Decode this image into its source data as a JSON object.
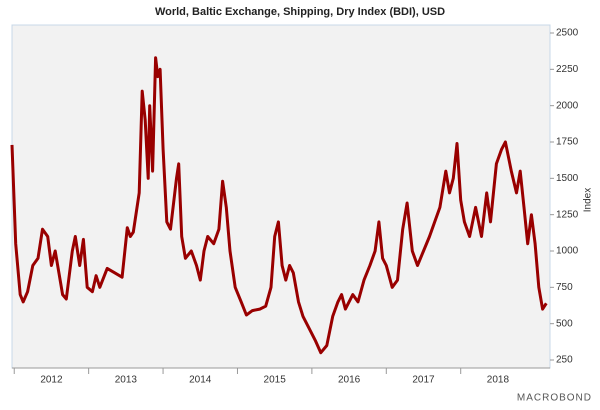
{
  "chart_data": {
    "type": "line",
    "title": "World, Baltic Exchange, Shipping, Dry Index (BDI), USD",
    "y_axis_label": "Index",
    "watermark": "MACROBOND",
    "x": [
      2011.97,
      2012.02,
      2012.08,
      2012.12,
      2012.18,
      2012.25,
      2012.32,
      2012.38,
      2012.45,
      2012.5,
      2012.55,
      2012.6,
      2012.65,
      2012.7,
      2012.78,
      2012.82,
      2012.88,
      2012.93,
      2012.98,
      2013.05,
      2013.1,
      2013.15,
      2013.25,
      2013.35,
      2013.45,
      2013.52,
      2013.56,
      2013.6,
      2013.68,
      2013.72,
      2013.76,
      2013.8,
      2013.82,
      2013.86,
      2013.9,
      2013.93,
      2013.96,
      2014.0,
      2014.05,
      2014.1,
      2014.18,
      2014.21,
      2014.25,
      2014.3,
      2014.38,
      2014.45,
      2014.5,
      2014.55,
      2014.6,
      2014.68,
      2014.75,
      2014.8,
      2014.85,
      2014.9,
      2014.97,
      2015.05,
      2015.12,
      2015.2,
      2015.3,
      2015.38,
      2015.45,
      2015.5,
      2015.55,
      2015.6,
      2015.65,
      2015.7,
      2015.75,
      2015.82,
      2015.88,
      2015.95,
      2016.05,
      2016.12,
      2016.2,
      2016.28,
      2016.35,
      2016.4,
      2016.45,
      2016.55,
      2016.62,
      2016.7,
      2016.78,
      2016.85,
      2016.9,
      2016.95,
      2017.0,
      2017.08,
      2017.15,
      2017.22,
      2017.28,
      2017.35,
      2017.42,
      2017.5,
      2017.58,
      2017.65,
      2017.72,
      2017.8,
      2017.85,
      2017.9,
      2017.95,
      2018.0,
      2018.05,
      2018.12,
      2018.2,
      2018.28,
      2018.35,
      2018.4,
      2018.48,
      2018.55,
      2018.6,
      2018.68,
      2018.75,
      2018.8,
      2018.85,
      2018.9,
      2018.95,
      2019.0,
      2019.05,
      2019.1,
      2019.15
    ],
    "series": [
      {
        "name": "BDI",
        "color": "#990000",
        "values": [
          1730,
          1050,
          700,
          650,
          720,
          900,
          950,
          1150,
          1100,
          900,
          1000,
          850,
          700,
          670,
          1000,
          1100,
          900,
          1080,
          750,
          720,
          830,
          750,
          880,
          850,
          820,
          1160,
          1100,
          1130,
          1400,
          2100,
          1900,
          1500,
          2000,
          1550,
          2330,
          2200,
          2250,
          1700,
          1200,
          1150,
          1500,
          1600,
          1100,
          950,
          1000,
          900,
          800,
          1000,
          1100,
          1050,
          1150,
          1480,
          1300,
          1000,
          750,
          650,
          560,
          590,
          600,
          620,
          750,
          1100,
          1200,
          900,
          800,
          900,
          850,
          650,
          550,
          480,
          380,
          300,
          350,
          550,
          650,
          700,
          600,
          700,
          650,
          800,
          900,
          1000,
          1200,
          950,
          900,
          750,
          800,
          1150,
          1330,
          1000,
          900,
          1000,
          1100,
          1200,
          1300,
          1550,
          1400,
          1500,
          1740,
          1350,
          1200,
          1100,
          1300,
          1100,
          1400,
          1200,
          1600,
          1700,
          1750,
          1550,
          1400,
          1550,
          1300,
          1050,
          1250,
          1050,
          750,
          600,
          640
        ]
      }
    ],
    "xlim": [
      2011.97,
      2019.2
    ],
    "xticks": [
      2012,
      2013,
      2014,
      2015,
      2016,
      2017,
      2018
    ],
    "ylim": [
      195,
      2555
    ],
    "yticks": [
      250,
      500,
      750,
      1000,
      1250,
      1500,
      1750,
      2000,
      2250,
      2500
    ],
    "grid": false
  }
}
